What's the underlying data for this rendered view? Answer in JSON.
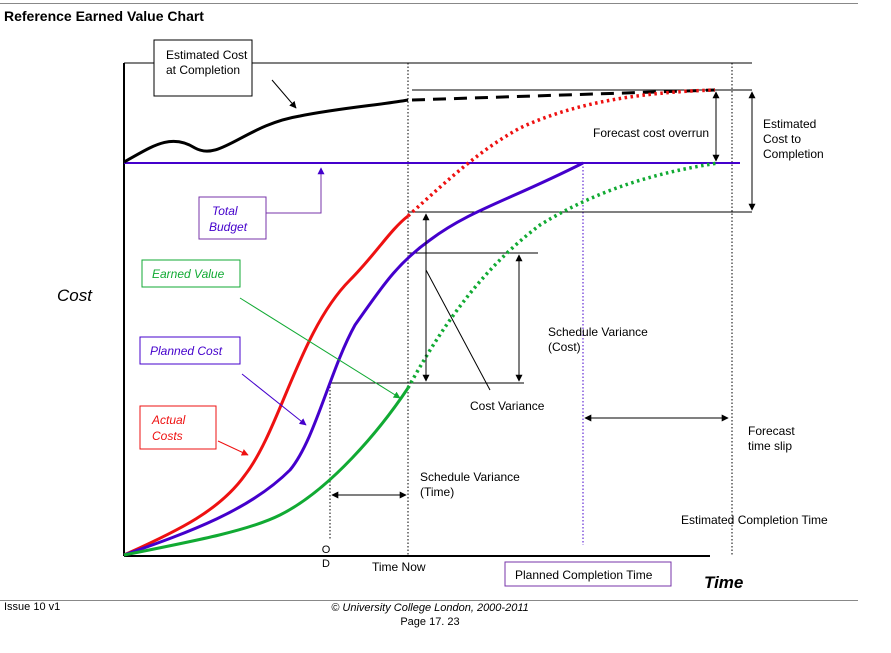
{
  "page": {
    "title": "Reference Earned Value Chart",
    "footer_issue": "Issue 10 v1",
    "footer_copyright": "© University College London, 2000-2011",
    "footer_page": "Page 17. 23"
  },
  "colors": {
    "actual": "#ee1111",
    "planned": "#4400cc",
    "earned": "#11aa33",
    "budget_box": "#7733aa",
    "ink": "#000000"
  },
  "diagram": {
    "axis_y_label": "Cost",
    "axis_x_label": "Time",
    "callouts": {
      "estimated_cost_line1": "Estimated Cost",
      "estimated_cost_line2": "at Completion",
      "total_budget_line1": "Total",
      "total_budget_line2": "Budget",
      "earned_value": "Earned Value",
      "planned_cost": "Planned Cost",
      "actual_costs_line1": "Actual",
      "actual_costs_line2": "Costs",
      "planned_completion_time": "Planned Completion Time"
    },
    "labels": {
      "forecast_cost_overrun": "Forecast cost overrun",
      "etc_line1": "Estimated",
      "etc_line2": "Cost to",
      "etc_line3": "Completion",
      "sv_cost_line1": "Schedule Variance",
      "sv_cost_line2": "(Cost)",
      "cost_variance": "Cost Variance",
      "forecast_slip_line1": "Forecast",
      "forecast_slip_line2": "time slip",
      "sv_time_line1": "Schedule Variance",
      "sv_time_line2": "(Time)",
      "estimated_completion_time": "Estimated Completion Time",
      "time_now": "Time Now",
      "od_top": "O",
      "od_bottom": "D"
    }
  }
}
